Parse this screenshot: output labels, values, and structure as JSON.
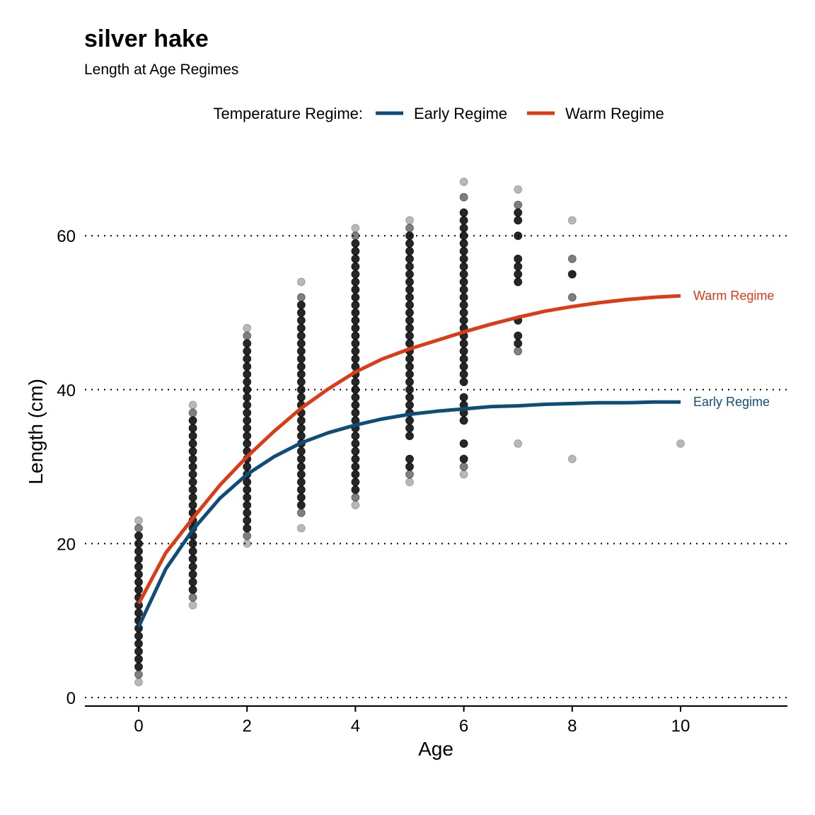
{
  "chart_data": {
    "type": "scatter",
    "title": "silver hake",
    "subtitle": "Length at Age Regimes",
    "xlabel": "Age",
    "ylabel": "Length (cm)",
    "xlim": [
      -1,
      12
    ],
    "ylim": [
      -1,
      70
    ],
    "x_ticks": [
      0,
      2,
      4,
      6,
      8,
      10
    ],
    "y_ticks": [
      0,
      20,
      40,
      60
    ],
    "grid": "horizontal dotted",
    "legend": {
      "title": "Temperature Regime:",
      "placement": "top",
      "entries": [
        {
          "name": "Early Regime",
          "color": "#0f4d78"
        },
        {
          "name": "Warm Regime",
          "color": "#db3b17"
        }
      ]
    },
    "points_color": "#000000",
    "point_groups": [
      {
        "age": 0,
        "lengths": [
          2,
          3,
          4,
          5,
          6,
          7,
          8,
          9,
          10,
          11,
          12,
          13,
          14,
          15,
          16,
          17,
          18,
          19,
          20,
          21,
          22,
          23
        ]
      },
      {
        "age": 1,
        "lengths": [
          12,
          13,
          14,
          15,
          16,
          17,
          18,
          19,
          20,
          21,
          22,
          23,
          24,
          25,
          26,
          27,
          28,
          29,
          30,
          31,
          32,
          33,
          34,
          35,
          36,
          37,
          38
        ]
      },
      {
        "age": 2,
        "lengths": [
          20,
          21,
          22,
          23,
          24,
          25,
          26,
          27,
          28,
          29,
          30,
          31,
          32,
          33,
          34,
          35,
          36,
          37,
          38,
          39,
          40,
          41,
          42,
          43,
          44,
          45,
          46,
          47,
          48
        ]
      },
      {
        "age": 3,
        "lengths": [
          22,
          24,
          25,
          26,
          27,
          28,
          29,
          30,
          31,
          32,
          33,
          34,
          35,
          36,
          37,
          38,
          39,
          40,
          41,
          42,
          43,
          44,
          45,
          46,
          47,
          48,
          49,
          50,
          51,
          52,
          54
        ]
      },
      {
        "age": 4,
        "lengths": [
          25,
          26,
          27,
          28,
          29,
          30,
          31,
          32,
          33,
          34,
          35,
          36,
          37,
          38,
          39,
          40,
          41,
          42,
          43,
          44,
          45,
          46,
          47,
          48,
          49,
          50,
          51,
          52,
          53,
          54,
          55,
          56,
          57,
          58,
          59,
          60,
          61
        ]
      },
      {
        "age": 5,
        "lengths": [
          28,
          29,
          30,
          31,
          34,
          35,
          36,
          37,
          38,
          39,
          40,
          41,
          42,
          43,
          44,
          45,
          46,
          47,
          48,
          49,
          50,
          51,
          52,
          53,
          54,
          55,
          56,
          57,
          58,
          59,
          60,
          61,
          62
        ]
      },
      {
        "age": 6,
        "lengths": [
          29,
          30,
          31,
          33,
          36,
          37,
          38,
          39,
          41,
          42,
          43,
          44,
          45,
          46,
          47,
          48,
          49,
          50,
          51,
          52,
          53,
          54,
          55,
          56,
          57,
          58,
          59,
          60,
          61,
          62,
          63,
          65,
          67
        ]
      },
      {
        "age": 7,
        "lengths": [
          33,
          45,
          46,
          47,
          49,
          54,
          55,
          56,
          57,
          60,
          62,
          63,
          64,
          66
        ]
      },
      {
        "age": 8,
        "lengths": [
          31,
          52,
          55,
          57,
          62
        ]
      },
      {
        "age": 10,
        "lengths": [
          33
        ]
      }
    ],
    "series": [
      {
        "name": "Early Regime",
        "color": "#0f4d78",
        "label": "Early Regime",
        "x": [
          0,
          0.5,
          1,
          1.5,
          2,
          2.5,
          3,
          3.5,
          4,
          4.5,
          5,
          5.5,
          6,
          6.5,
          7,
          7.5,
          8,
          8.5,
          9,
          9.5,
          10
        ],
        "y": [
          9.2,
          16.7,
          21.8,
          25.9,
          29,
          31.3,
          33.1,
          34.4,
          35.4,
          36.2,
          36.8,
          37.2,
          37.5,
          37.8,
          37.9,
          38.1,
          38.2,
          38.3,
          38.3,
          38.4,
          38.4
        ]
      },
      {
        "name": "Warm Regime",
        "color": "#db3b17",
        "label": "Warm Regime",
        "x": [
          0,
          0.5,
          1,
          1.5,
          2,
          2.5,
          3,
          3.5,
          4,
          4.5,
          5,
          5.5,
          6,
          6.5,
          7,
          7.5,
          8,
          8.5,
          9,
          9.5,
          10
        ],
        "y": [
          12.2,
          18.8,
          23.3,
          27.6,
          31.3,
          34.6,
          37.6,
          40.1,
          42.3,
          44,
          45.3,
          46.4,
          47.5,
          48.5,
          49.4,
          50.2,
          50.8,
          51.3,
          51.7,
          52,
          52.2
        ]
      }
    ]
  }
}
